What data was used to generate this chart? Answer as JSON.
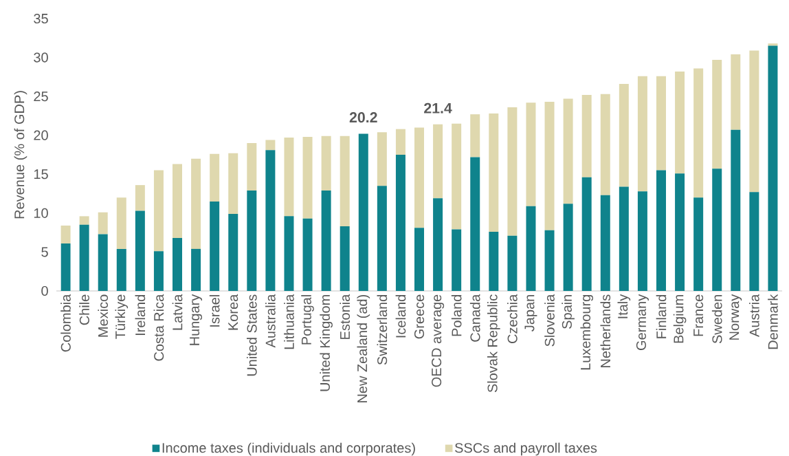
{
  "chart_data": {
    "type": "bar",
    "stacked": true,
    "ylabel": "Revenue (% of GDP)",
    "categories": [
      "Colombia",
      "Chile",
      "Mexico",
      "Türkiye",
      "Ireland",
      "Costa Rica",
      "Latvia",
      "Hungary",
      "Israel",
      "Korea",
      "United States",
      "Australia",
      "Lithuania",
      "Portugal",
      "United Kingdom",
      "Estonia",
      "New Zealand (ad)",
      "Switzerland",
      "Iceland",
      "Greece",
      "OECD average",
      "Poland",
      "Canada",
      "Slovak Republic",
      "Czechia",
      "Japan",
      "Slovenia",
      "Spain",
      "Luxembourg",
      "Netherlands",
      "Italy",
      "Germany",
      "Finland",
      "Belgium",
      "France",
      "Sweden",
      "Norway",
      "Austria",
      "Denmark"
    ],
    "series": [
      {
        "name": "Income taxes (individuals and corporates)",
        "color": "#0f838c",
        "values": [
          6.1,
          8.5,
          7.3,
          5.4,
          10.3,
          5.1,
          6.8,
          5.4,
          11.5,
          9.9,
          12.9,
          18.1,
          9.6,
          9.3,
          12.9,
          8.3,
          20.2,
          13.5,
          17.5,
          8.1,
          11.9,
          7.9,
          17.2,
          7.6,
          7.1,
          10.9,
          7.8,
          11.2,
          14.6,
          12.3,
          13.4,
          12.8,
          15.5,
          15.1,
          12.0,
          15.7,
          20.7,
          12.7,
          31.5
        ]
      },
      {
        "name": "SSCs and payroll taxes",
        "color": "#dfd8ae",
        "values": [
          2.3,
          1.1,
          2.8,
          6.6,
          3.3,
          10.4,
          9.5,
          11.6,
          6.1,
          7.8,
          6.1,
          1.3,
          10.1,
          10.5,
          7.0,
          11.6,
          0,
          6.9,
          3.3,
          12.9,
          9.5,
          13.6,
          5.5,
          15.2,
          16.5,
          13.3,
          16.5,
          13.5,
          10.6,
          13.0,
          13.2,
          14.8,
          12.1,
          13.1,
          16.6,
          14.0,
          9.7,
          18.2,
          0.3
        ]
      }
    ],
    "totals": [
      null,
      null,
      null,
      null,
      null,
      null,
      null,
      null,
      null,
      null,
      null,
      null,
      null,
      null,
      null,
      null,
      "20.2",
      null,
      null,
      null,
      "21.4",
      null,
      null,
      null,
      null,
      null,
      null,
      null,
      null,
      null,
      null,
      null,
      null,
      null,
      null,
      null,
      null,
      null,
      null
    ],
    "ylim": [
      0,
      35
    ],
    "yticks": [
      0,
      5,
      10,
      15,
      20,
      25,
      30,
      35
    ],
    "legend": "bottom"
  }
}
